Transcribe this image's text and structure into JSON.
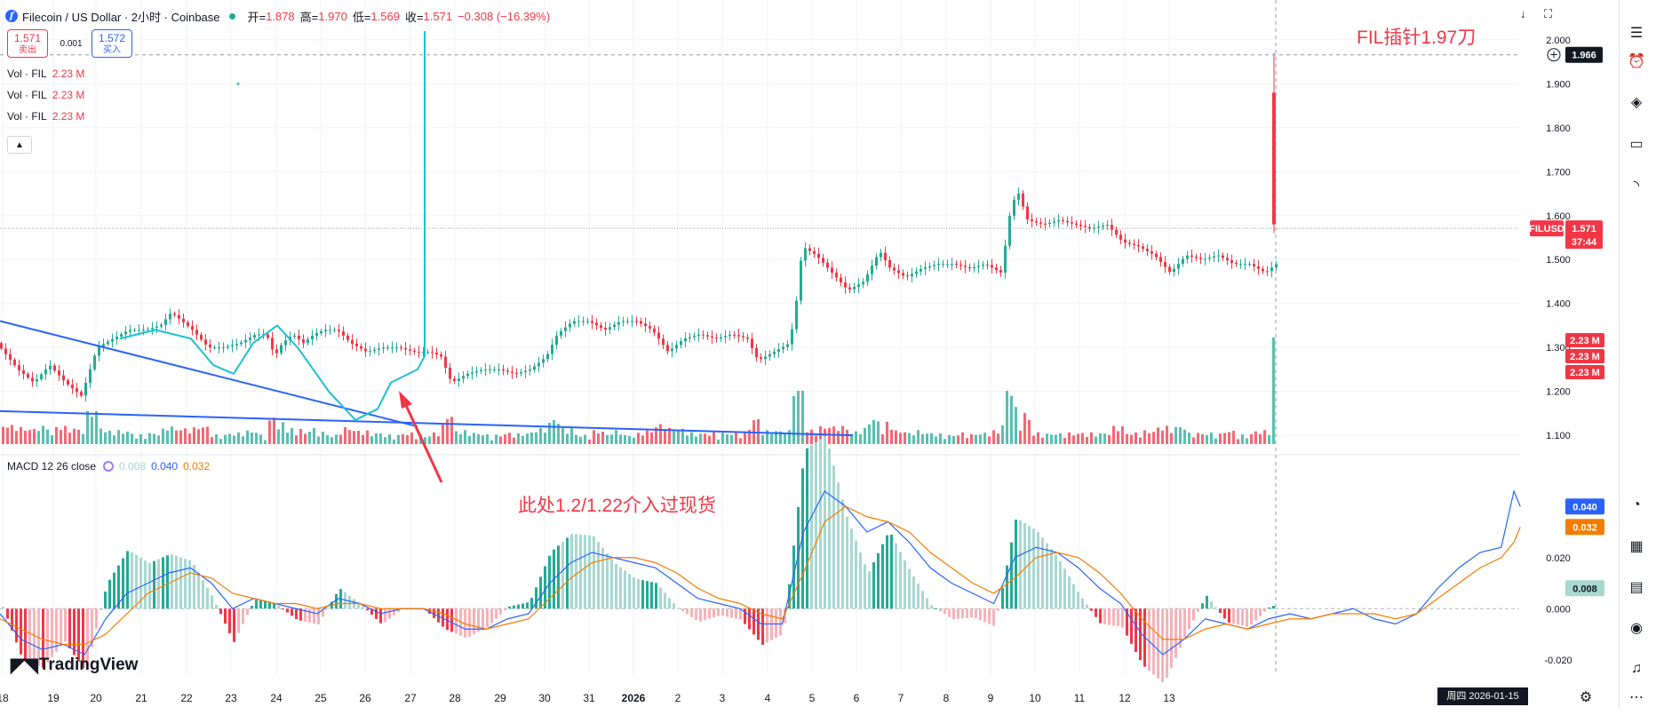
{
  "header": {
    "title": "Filecoin / US Dollar · 2小时 · Coinbase",
    "open_label": "开=",
    "open": "1.878",
    "high_label": "高=",
    "high": "1.970",
    "low_label": "低=",
    "low": "1.569",
    "close_label": "收=",
    "close": "1.571",
    "change": "−0.308 (−16.39%)"
  },
  "trade": {
    "sell_price": "1.571",
    "sell_label": "卖出",
    "spread": "0.001",
    "buy_price": "1.572",
    "buy_label": "买入"
  },
  "volume_legends": [
    {
      "label": "Vol · FIL",
      "value": "2.23 M"
    },
    {
      "label": "Vol · FIL",
      "value": "2.23 M"
    },
    {
      "label": "Vol · FIL",
      "value": "2.23 M"
    }
  ],
  "macd_legend": {
    "label": "MACD 12 26 close",
    "hist": "0.008",
    "macd": "0.040",
    "signal": "0.032"
  },
  "annotations": {
    "top_right": "FIL插针1.97刀",
    "arrow_text": "此处1.2/1.22介入过现货"
  },
  "logo": "TradingView",
  "crosshair_time": "周四 2026-01-15   10:00",
  "price_badges": {
    "crosshair": "1.966",
    "symbol": "FILUSD",
    "last": "1.571",
    "countdown": "37:44",
    "vol": [
      "2.23 M",
      "2.23 M",
      "2.23 M"
    ]
  },
  "macd_badges": {
    "macd": "0.040",
    "signal": "0.032",
    "hist": "0.008"
  },
  "colors": {
    "up": "#22ab94",
    "down": "#f23645",
    "macd": "#2962ff",
    "signal": "#f57c00",
    "trendline": "#2962ff",
    "curve": "#1ec0d0"
  },
  "right_toolbar_icons": [
    "watchlist-icon",
    "alert-clock-icon",
    "layers-icon",
    "chat-icon",
    "broadcast-icon",
    "ideas-icon",
    "calculator-icon",
    "calendar-icon",
    "stream-icon",
    "bell-icon",
    "menu-icon"
  ],
  "chart_data": {
    "type": "candlestick",
    "x_ticks": [
      "18",
      "19",
      "20",
      "21",
      "22",
      "23",
      "24",
      "25",
      "26",
      "27",
      "28",
      "29",
      "30",
      "31",
      "2026",
      "2",
      "3",
      "4",
      "5",
      "6",
      "7",
      "8",
      "9",
      "10",
      "11",
      "12",
      "13"
    ],
    "price_axis": {
      "ticks": [
        "2.000",
        "1.900",
        "1.800",
        "1.700",
        "1.600",
        "1.500",
        "1.400",
        "1.300",
        "1.200",
        "1.100"
      ],
      "range": [
        1.08,
        2.02
      ]
    },
    "macd_axis": {
      "ticks": [
        "0.020",
        "0.000",
        "-0.020"
      ],
      "range": [
        -0.026,
        0.054
      ]
    },
    "price_path": [
      [
        0,
        1.31
      ],
      [
        20,
        1.25
      ],
      [
        35,
        1.22
      ],
      [
        50,
        1.26
      ],
      [
        65,
        1.22
      ],
      [
        80,
        1.19
      ],
      [
        95,
        1.3
      ],
      [
        110,
        1.32
      ],
      [
        125,
        1.34
      ],
      [
        140,
        1.34
      ],
      [
        155,
        1.35
      ],
      [
        165,
        1.38
      ],
      [
        175,
        1.36
      ],
      [
        185,
        1.34
      ],
      [
        200,
        1.3
      ],
      [
        215,
        1.3
      ],
      [
        230,
        1.31
      ],
      [
        245,
        1.33
      ],
      [
        255,
        1.33
      ],
      [
        263,
        1.28
      ],
      [
        270,
        1.31
      ],
      [
        280,
        1.33
      ],
      [
        290,
        1.31
      ],
      [
        300,
        1.33
      ],
      [
        310,
        1.34
      ],
      [
        322,
        1.34
      ],
      [
        335,
        1.31
      ],
      [
        350,
        1.29
      ],
      [
        365,
        1.3
      ],
      [
        380,
        1.3
      ],
      [
        395,
        1.29
      ],
      [
        410,
        1.29
      ],
      [
        420,
        1.28
      ],
      [
        430,
        1.22
      ],
      [
        445,
        1.24
      ],
      [
        460,
        1.25
      ],
      [
        475,
        1.25
      ],
      [
        490,
        1.24
      ],
      [
        505,
        1.25
      ],
      [
        520,
        1.28
      ],
      [
        530,
        1.33
      ],
      [
        545,
        1.36
      ],
      [
        560,
        1.36
      ],
      [
        575,
        1.34
      ],
      [
        590,
        1.36
      ],
      [
        605,
        1.36
      ],
      [
        620,
        1.34
      ],
      [
        635,
        1.29
      ],
      [
        650,
        1.32
      ],
      [
        665,
        1.33
      ],
      [
        680,
        1.32
      ],
      [
        695,
        1.33
      ],
      [
        710,
        1.32
      ],
      [
        720,
        1.27
      ],
      [
        735,
        1.29
      ],
      [
        750,
        1.31
      ],
      [
        756,
        1.4
      ],
      [
        762,
        1.53
      ],
      [
        775,
        1.51
      ],
      [
        790,
        1.47
      ],
      [
        805,
        1.43
      ],
      [
        820,
        1.45
      ],
      [
        835,
        1.52
      ],
      [
        845,
        1.48
      ],
      [
        860,
        1.46
      ],
      [
        875,
        1.48
      ],
      [
        890,
        1.49
      ],
      [
        905,
        1.49
      ],
      [
        920,
        1.48
      ],
      [
        935,
        1.49
      ],
      [
        950,
        1.47
      ],
      [
        958,
        1.6
      ],
      [
        965,
        1.66
      ],
      [
        975,
        1.59
      ],
      [
        990,
        1.58
      ],
      [
        1005,
        1.59
      ],
      [
        1020,
        1.58
      ],
      [
        1035,
        1.57
      ],
      [
        1050,
        1.58
      ],
      [
        1065,
        1.54
      ],
      [
        1080,
        1.53
      ],
      [
        1095,
        1.51
      ],
      [
        1110,
        1.47
      ],
      [
        1125,
        1.51
      ],
      [
        1140,
        1.5
      ],
      [
        1155,
        1.51
      ],
      [
        1170,
        1.49
      ],
      [
        1185,
        1.49
      ],
      [
        1200,
        1.47
      ],
      [
        1215,
        1.5
      ],
      [
        1230,
        1.49
      ],
      [
        1245,
        1.49
      ],
      [
        1260,
        1.5
      ],
      [
        1275,
        1.48
      ],
      [
        1290,
        1.46
      ],
      [
        1305,
        1.47
      ],
      [
        1320,
        1.45
      ],
      [
        1335,
        1.46
      ],
      [
        1350,
        1.48
      ],
      [
        1360,
        1.53
      ],
      [
        1370,
        1.57
      ],
      [
        1385,
        1.58
      ],
      [
        1400,
        1.58
      ],
      [
        1415,
        1.59
      ],
      [
        1425,
        1.58
      ],
      [
        1432,
        1.91
      ],
      [
        1436,
        1.57
      ]
    ],
    "macd_line": [
      [
        0,
        -0.002
      ],
      [
        20,
        -0.012
      ],
      [
        40,
        -0.016
      ],
      [
        60,
        -0.014
      ],
      [
        80,
        -0.018
      ],
      [
        100,
        -0.004
      ],
      [
        120,
        0.006
      ],
      [
        140,
        0.01
      ],
      [
        160,
        0.014
      ],
      [
        180,
        0.016
      ],
      [
        200,
        0.01
      ],
      [
        220,
        0.0
      ],
      [
        240,
        0.004
      ],
      [
        260,
        0.002
      ],
      [
        280,
        0.0
      ],
      [
        300,
        -0.002
      ],
      [
        320,
        0.004
      ],
      [
        340,
        0.002
      ],
      [
        360,
        -0.002
      ],
      [
        380,
        0.0
      ],
      [
        400,
        0.0
      ],
      [
        420,
        -0.004
      ],
      [
        440,
        -0.008
      ],
      [
        460,
        -0.008
      ],
      [
        480,
        -0.004
      ],
      [
        500,
        -0.002
      ],
      [
        520,
        0.01
      ],
      [
        540,
        0.018
      ],
      [
        560,
        0.022
      ],
      [
        580,
        0.02
      ],
      [
        600,
        0.018
      ],
      [
        620,
        0.016
      ],
      [
        640,
        0.01
      ],
      [
        660,
        0.004
      ],
      [
        680,
        0.002
      ],
      [
        700,
        0.0
      ],
      [
        720,
        -0.006
      ],
      [
        740,
        -0.006
      ],
      [
        760,
        0.03
      ],
      [
        780,
        0.046
      ],
      [
        800,
        0.04
      ],
      [
        820,
        0.03
      ],
      [
        840,
        0.034
      ],
      [
        860,
        0.026
      ],
      [
        880,
        0.016
      ],
      [
        900,
        0.01
      ],
      [
        920,
        0.006
      ],
      [
        940,
        0.002
      ],
      [
        960,
        0.02
      ],
      [
        980,
        0.024
      ],
      [
        1000,
        0.022
      ],
      [
        1020,
        0.016
      ],
      [
        1040,
        0.008
      ],
      [
        1060,
        0.002
      ],
      [
        1080,
        -0.01
      ],
      [
        1100,
        -0.018
      ],
      [
        1120,
        -0.012
      ],
      [
        1140,
        -0.004
      ],
      [
        1160,
        -0.006
      ],
      [
        1180,
        -0.008
      ],
      [
        1200,
        -0.004
      ],
      [
        1220,
        -0.002
      ],
      [
        1240,
        -0.004
      ],
      [
        1260,
        -0.002
      ],
      [
        1280,
        0.0
      ],
      [
        1300,
        -0.004
      ],
      [
        1320,
        -0.006
      ],
      [
        1340,
        -0.002
      ],
      [
        1360,
        0.008
      ],
      [
        1380,
        0.016
      ],
      [
        1400,
        0.022
      ],
      [
        1420,
        0.024
      ],
      [
        1432,
        0.046
      ],
      [
        1438,
        0.04
      ]
    ],
    "signal_line": [
      [
        0,
        -0.004
      ],
      [
        20,
        -0.008
      ],
      [
        40,
        -0.012
      ],
      [
        60,
        -0.014
      ],
      [
        80,
        -0.014
      ],
      [
        100,
        -0.01
      ],
      [
        120,
        -0.002
      ],
      [
        140,
        0.006
      ],
      [
        160,
        0.01
      ],
      [
        180,
        0.014
      ],
      [
        200,
        0.012
      ],
      [
        220,
        0.006
      ],
      [
        240,
        0.004
      ],
      [
        260,
        0.002
      ],
      [
        280,
        0.002
      ],
      [
        300,
        0.0
      ],
      [
        320,
        0.002
      ],
      [
        340,
        0.002
      ],
      [
        360,
        0.0
      ],
      [
        380,
        0.0
      ],
      [
        400,
        0.0
      ],
      [
        420,
        -0.002
      ],
      [
        440,
        -0.006
      ],
      [
        460,
        -0.008
      ],
      [
        480,
        -0.006
      ],
      [
        500,
        -0.004
      ],
      [
        520,
        0.004
      ],
      [
        540,
        0.012
      ],
      [
        560,
        0.018
      ],
      [
        580,
        0.02
      ],
      [
        600,
        0.02
      ],
      [
        620,
        0.018
      ],
      [
        640,
        0.014
      ],
      [
        660,
        0.008
      ],
      [
        680,
        0.004
      ],
      [
        700,
        0.002
      ],
      [
        720,
        -0.002
      ],
      [
        740,
        -0.004
      ],
      [
        760,
        0.014
      ],
      [
        780,
        0.034
      ],
      [
        800,
        0.04
      ],
      [
        820,
        0.036
      ],
      [
        840,
        0.034
      ],
      [
        860,
        0.03
      ],
      [
        880,
        0.022
      ],
      [
        900,
        0.016
      ],
      [
        920,
        0.01
      ],
      [
        940,
        0.006
      ],
      [
        960,
        0.012
      ],
      [
        980,
        0.02
      ],
      [
        1000,
        0.022
      ],
      [
        1020,
        0.02
      ],
      [
        1040,
        0.014
      ],
      [
        1060,
        0.006
      ],
      [
        1080,
        -0.004
      ],
      [
        1100,
        -0.012
      ],
      [
        1120,
        -0.012
      ],
      [
        1140,
        -0.008
      ],
      [
        1160,
        -0.006
      ],
      [
        1180,
        -0.008
      ],
      [
        1200,
        -0.006
      ],
      [
        1220,
        -0.004
      ],
      [
        1240,
        -0.004
      ],
      [
        1260,
        -0.002
      ],
      [
        1280,
        -0.002
      ],
      [
        1300,
        -0.002
      ],
      [
        1320,
        -0.004
      ],
      [
        1340,
        -0.002
      ],
      [
        1360,
        0.004
      ],
      [
        1380,
        0.01
      ],
      [
        1400,
        0.016
      ],
      [
        1420,
        0.02
      ],
      [
        1432,
        0.026
      ],
      [
        1438,
        0.032
      ]
    ]
  }
}
